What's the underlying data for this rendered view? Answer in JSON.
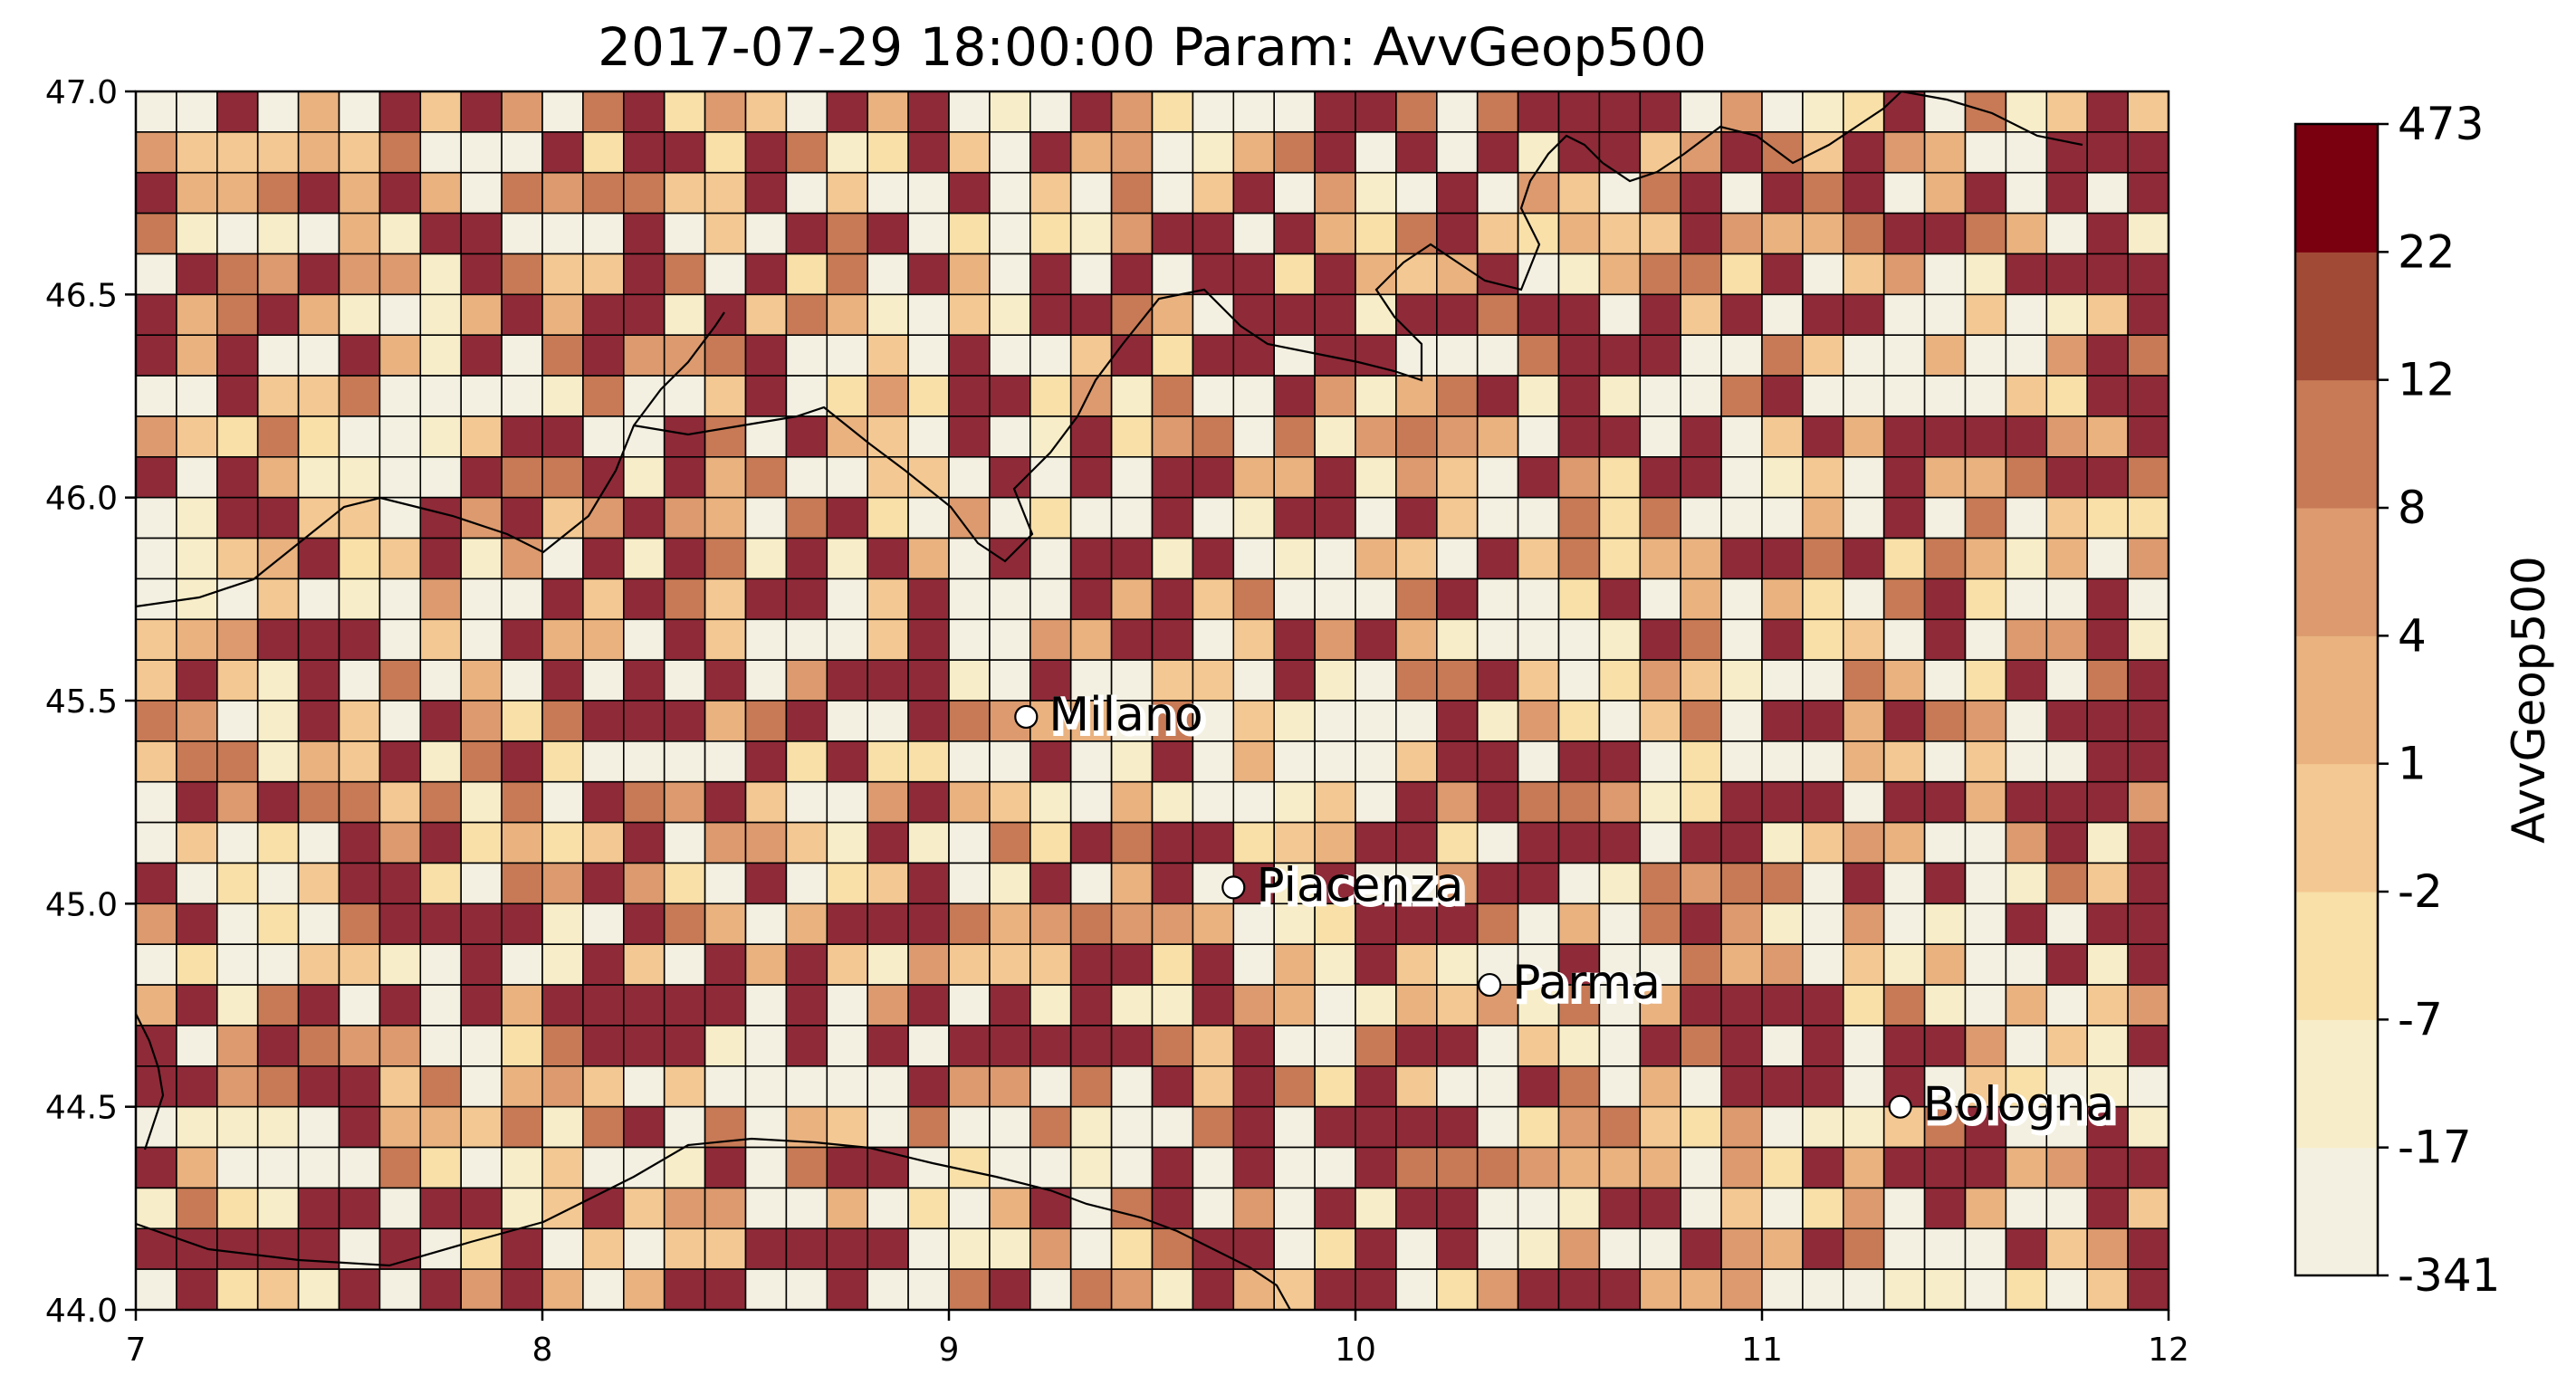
{
  "chart_data": {
    "type": "heatmap",
    "title": "2017-07-29 18:00:00 Param: AvvGeop500",
    "xlabel": "",
    "ylabel": "",
    "xlim": [
      7,
      12
    ],
    "ylim": [
      44,
      47
    ],
    "x_ticks": [
      "7",
      "8",
      "9",
      "10",
      "11",
      "12"
    ],
    "y_ticks": [
      "44.0",
      "44.5",
      "45.0",
      "45.5",
      "46.0",
      "46.5",
      "47.0"
    ],
    "grid_resolution_deg": 0.1,
    "colorbar": {
      "label": "AvvGeop500",
      "levels": [
        "-341",
        "-17",
        "-7",
        "-2",
        "1",
        "4",
        "8",
        "12",
        "22",
        "473"
      ],
      "colors": [
        "#f3f0e1",
        "#f7edc8",
        "#f8e0a8",
        "#f4c892",
        "#e9b27f",
        "#dc9a6e",
        "#c77a55",
        "#a14a36",
        "#7a0010"
      ]
    },
    "cell_colors": [
      "#f3f0e1",
      "#f7edc8",
      "#f8e0a8",
      "#f4c892",
      "#e9b27f",
      "#dc9a6e",
      "#c77a55",
      "#8f2a38"
    ],
    "cities": [
      {
        "name": "Milano",
        "lon": 9.19,
        "lat": 45.46
      },
      {
        "name": "Piacenza",
        "lon": 9.7,
        "lat": 45.04
      },
      {
        "name": "Parma",
        "lon": 10.33,
        "lat": 44.8
      },
      {
        "name": "Bologna",
        "lon": 11.34,
        "lat": 44.5
      }
    ]
  }
}
